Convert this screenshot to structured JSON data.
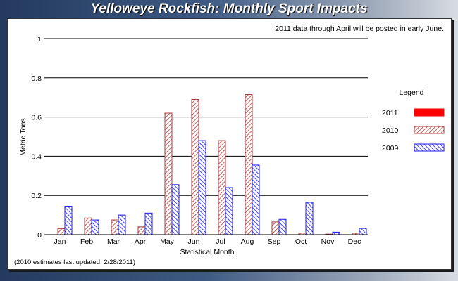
{
  "title": "Yelloweye Rockfish: Monthly Sport Impacts",
  "note": "2011 data through April will be posted in early June.",
  "footnote": "(2010 estimates last updated: 2/28/2011)",
  "chart_data": {
    "type": "bar",
    "xlabel": "Statistical Month",
    "ylabel": "Metric Tons",
    "ylim": [
      0,
      1
    ],
    "yticks": [
      "0",
      "0.2",
      "0.4",
      "0.6",
      "0.8",
      "1"
    ],
    "categories": [
      "Jan",
      "Feb",
      "Mar",
      "Apr",
      "May",
      "Jun",
      "Jul",
      "Aug",
      "Sep",
      "Oct",
      "Nov",
      "Dec"
    ],
    "legend_title": "Legend",
    "legend_position": "right",
    "series": [
      {
        "name": "2011",
        "color": "#ff0000",
        "pattern": "solid",
        "values": [
          0,
          0,
          0,
          0,
          0,
          0,
          0,
          0,
          0,
          0,
          0,
          0
        ]
      },
      {
        "name": "2010",
        "color": "#b03a3a",
        "pattern": "hatch",
        "values": [
          0.03,
          0.085,
          0.075,
          0.04,
          0.62,
          0.69,
          0.48,
          0.715,
          0.065,
          0.008,
          0.003,
          0.007
        ]
      },
      {
        "name": "2009",
        "color": "#1a1aff",
        "pattern": "hatch",
        "values": [
          0.145,
          0.075,
          0.1,
          0.11,
          0.255,
          0.48,
          0.24,
          0.355,
          0.078,
          0.165,
          0.013,
          0.032
        ]
      }
    ]
  }
}
